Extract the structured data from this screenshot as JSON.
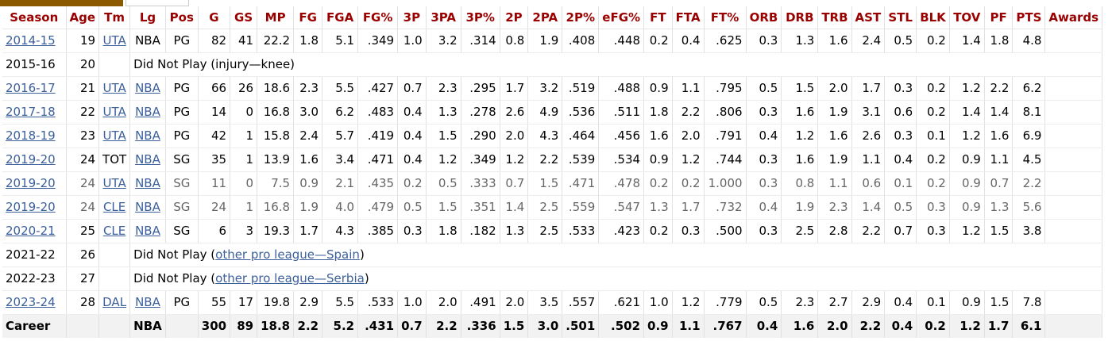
{
  "columns": [
    "Season",
    "Age",
    "Tm",
    "Lg",
    "Pos",
    "G",
    "GS",
    "MP",
    "FG",
    "FGA",
    "FG%",
    "3P",
    "3PA",
    "3P%",
    "2P",
    "2PA",
    "2P%",
    "eFG%",
    "FT",
    "FTA",
    "FT%",
    "ORB",
    "DRB",
    "TRB",
    "AST",
    "STL",
    "BLK",
    "TOV",
    "PF",
    "PTS",
    "Awards"
  ],
  "rows": [
    {
      "season": "2014-15",
      "season_link": true,
      "age": "19",
      "tm": "UTA",
      "tm_link": true,
      "lg": "NBA",
      "lg_link": false,
      "pos": "PG",
      "stats": [
        "82",
        "41",
        "22.2",
        "1.8",
        "5.1",
        ".349",
        "1.0",
        "3.2",
        ".314",
        "0.8",
        "1.9",
        ".408",
        ".448",
        "0.2",
        "0.4",
        ".625",
        "0.3",
        "1.3",
        "1.6",
        "2.4",
        "0.5",
        "0.2",
        "1.4",
        "1.8",
        "4.8"
      ],
      "awards": ""
    },
    {
      "season": "2015-16",
      "season_link": false,
      "age": "20",
      "dnp": true,
      "note_prefix": "Did Not Play (injury—knee)",
      "note_link": "",
      "note_suffix": ""
    },
    {
      "season": "2016-17",
      "season_link": true,
      "age": "21",
      "tm": "UTA",
      "tm_link": true,
      "lg": "NBA",
      "lg_link": true,
      "pos": "PG",
      "stats": [
        "66",
        "26",
        "18.6",
        "2.3",
        "5.5",
        ".427",
        "0.7",
        "2.3",
        ".295",
        "1.7",
        "3.2",
        ".519",
        ".488",
        "0.9",
        "1.1",
        ".795",
        "0.5",
        "1.5",
        "2.0",
        "1.7",
        "0.3",
        "0.2",
        "1.2",
        "2.2",
        "6.2"
      ],
      "awards": ""
    },
    {
      "season": "2017-18",
      "season_link": true,
      "age": "22",
      "tm": "UTA",
      "tm_link": true,
      "lg": "NBA",
      "lg_link": true,
      "pos": "PG",
      "stats": [
        "14",
        "0",
        "16.8",
        "3.0",
        "6.2",
        ".483",
        "0.4",
        "1.3",
        ".278",
        "2.6",
        "4.9",
        ".536",
        ".511",
        "1.8",
        "2.2",
        ".806",
        "0.3",
        "1.6",
        "1.9",
        "3.1",
        "0.6",
        "0.2",
        "1.4",
        "1.4",
        "8.1"
      ],
      "awards": ""
    },
    {
      "season": "2018-19",
      "season_link": true,
      "age": "23",
      "tm": "UTA",
      "tm_link": true,
      "lg": "NBA",
      "lg_link": true,
      "pos": "PG",
      "stats": [
        "42",
        "1",
        "15.8",
        "2.4",
        "5.7",
        ".419",
        "0.4",
        "1.5",
        ".290",
        "2.0",
        "4.3",
        ".464",
        ".456",
        "1.6",
        "2.0",
        ".791",
        "0.4",
        "1.2",
        "1.6",
        "2.6",
        "0.3",
        "0.1",
        "1.2",
        "1.6",
        "6.9"
      ],
      "awards": ""
    },
    {
      "season": "2019-20",
      "season_link": true,
      "age": "24",
      "tm": "TOT",
      "tm_link": false,
      "lg": "NBA",
      "lg_link": true,
      "pos": "SG",
      "stats": [
        "35",
        "1",
        "13.9",
        "1.6",
        "3.4",
        ".471",
        "0.4",
        "1.2",
        ".349",
        "1.2",
        "2.2",
        ".539",
        ".534",
        "0.9",
        "1.2",
        ".744",
        "0.3",
        "1.6",
        "1.9",
        "1.1",
        "0.4",
        "0.2",
        "0.9",
        "1.1",
        "4.5"
      ],
      "awards": ""
    },
    {
      "season": "2019-20",
      "season_link": true,
      "partial": true,
      "age": "24",
      "tm": "UTA",
      "tm_link": true,
      "lg": "NBA",
      "lg_link": true,
      "pos": "SG",
      "stats": [
        "11",
        "0",
        "7.5",
        "0.9",
        "2.1",
        ".435",
        "0.2",
        "0.5",
        ".333",
        "0.7",
        "1.5",
        ".471",
        ".478",
        "0.2",
        "0.2",
        "1.000",
        "0.3",
        "0.8",
        "1.1",
        "0.6",
        "0.1",
        "0.2",
        "0.9",
        "0.7",
        "2.2"
      ],
      "awards": ""
    },
    {
      "season": "2019-20",
      "season_link": true,
      "partial": true,
      "age": "24",
      "tm": "CLE",
      "tm_link": true,
      "lg": "NBA",
      "lg_link": true,
      "pos": "SG",
      "stats": [
        "24",
        "1",
        "16.8",
        "1.9",
        "4.0",
        ".479",
        "0.5",
        "1.5",
        ".351",
        "1.4",
        "2.5",
        ".559",
        ".547",
        "1.3",
        "1.7",
        ".732",
        "0.4",
        "1.9",
        "2.3",
        "1.4",
        "0.5",
        "0.3",
        "0.9",
        "1.3",
        "5.6"
      ],
      "awards": ""
    },
    {
      "season": "2020-21",
      "season_link": true,
      "age": "25",
      "tm": "CLE",
      "tm_link": true,
      "lg": "NBA",
      "lg_link": true,
      "pos": "SG",
      "stats": [
        "6",
        "3",
        "19.3",
        "1.7",
        "4.3",
        ".385",
        "0.3",
        "1.8",
        ".182",
        "1.3",
        "2.5",
        ".533",
        ".423",
        "0.2",
        "0.3",
        ".500",
        "0.3",
        "2.5",
        "2.8",
        "2.2",
        "0.7",
        "0.3",
        "1.2",
        "1.5",
        "3.8"
      ],
      "awards": ""
    },
    {
      "season": "2021-22",
      "season_link": false,
      "age": "26",
      "dnp": true,
      "note_prefix": "Did Not Play (",
      "note_link": "other pro league—Spain",
      "note_suffix": ")"
    },
    {
      "season": "2022-23",
      "season_link": false,
      "age": "27",
      "dnp": true,
      "note_prefix": "Did Not Play (",
      "note_link": "other pro league—Serbia",
      "note_suffix": ")"
    },
    {
      "season": "2023-24",
      "season_link": true,
      "age": "28",
      "tm": "DAL",
      "tm_link": true,
      "lg": "NBA",
      "lg_link": true,
      "pos": "PG",
      "stats": [
        "55",
        "17",
        "19.8",
        "2.9",
        "5.5",
        ".533",
        "1.0",
        "2.0",
        ".491",
        "2.0",
        "3.5",
        ".557",
        ".621",
        "1.0",
        "1.2",
        ".779",
        "0.5",
        "2.3",
        "2.7",
        "2.9",
        "0.4",
        "0.1",
        "0.9",
        "1.5",
        "7.8"
      ],
      "awards": ""
    }
  ],
  "career": {
    "label": "Career",
    "lg": "NBA",
    "stats": [
      "300",
      "89",
      "18.8",
      "2.2",
      "5.2",
      ".431",
      "0.7",
      "2.2",
      ".336",
      "1.5",
      "3.0",
      ".501",
      ".502",
      "0.9",
      "1.1",
      ".767",
      "0.4",
      "1.6",
      "2.0",
      "2.2",
      "0.4",
      "0.2",
      "1.2",
      "1.7",
      "6.1"
    ],
    "awards": ""
  },
  "colors": {
    "header_text": "#9a0000",
    "link": "#3b5f9b",
    "tab_active": "#8b5a00",
    "career_bg": "#f2f2f2"
  }
}
